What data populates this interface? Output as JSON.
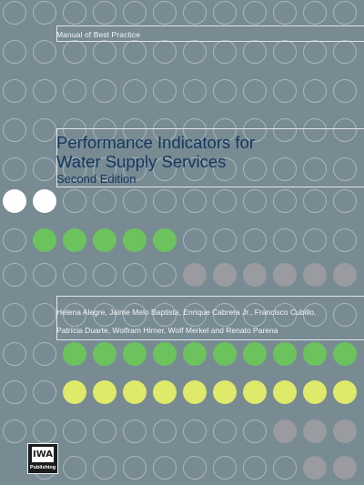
{
  "cover": {
    "series": "Manual of Best Practice",
    "title_lines": [
      "Performance Indicators for",
      "Water Supply Services"
    ],
    "edition": "Second Edition",
    "author_lines": [
      "Helena Alegre, Jaime Melo Baptista, Enrique Cabrera Jr., Francisco Cubillo,",
      "Patrícia Duarte, Wolfram Hirner, Wolf Merkel and Renato Parena"
    ],
    "publisher_logo_text": "IWA",
    "publisher_word": "Publishing"
  },
  "colors": {
    "background": "#788b93",
    "title_text": "#15365f",
    "dot_outline": "#a9b6bb",
    "dot_white": "#ffffff",
    "dot_green": "#6cc35d",
    "dot_gray": "#999ba0",
    "dot_yellow": "#dfe96a"
  }
}
